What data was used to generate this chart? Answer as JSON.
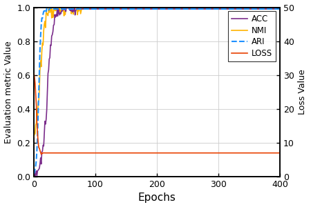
{
  "title": "",
  "xlabel": "Epochs",
  "ylabel_left": "Evaluation metric Value",
  "ylabel_right": "Loss Value",
  "xlim": [
    0,
    400
  ],
  "ylim_left": [
    0,
    1.0
  ],
  "ylim_right": [
    0,
    50
  ],
  "yticks_left": [
    0,
    0.2,
    0.4,
    0.6,
    0.8,
    1.0
  ],
  "yticks_right": [
    0,
    10,
    20,
    30,
    40,
    50
  ],
  "xticks": [
    0,
    100,
    200,
    300,
    400
  ],
  "acc_color": "#7B2D8B",
  "nmi_color": "#FFB300",
  "ari_color": "#1E90FF",
  "loss_color": "#E84000",
  "grid_color": "#cccccc",
  "total_epochs": 400,
  "figsize": [
    4.5,
    3.0
  ],
  "dpi": 100
}
